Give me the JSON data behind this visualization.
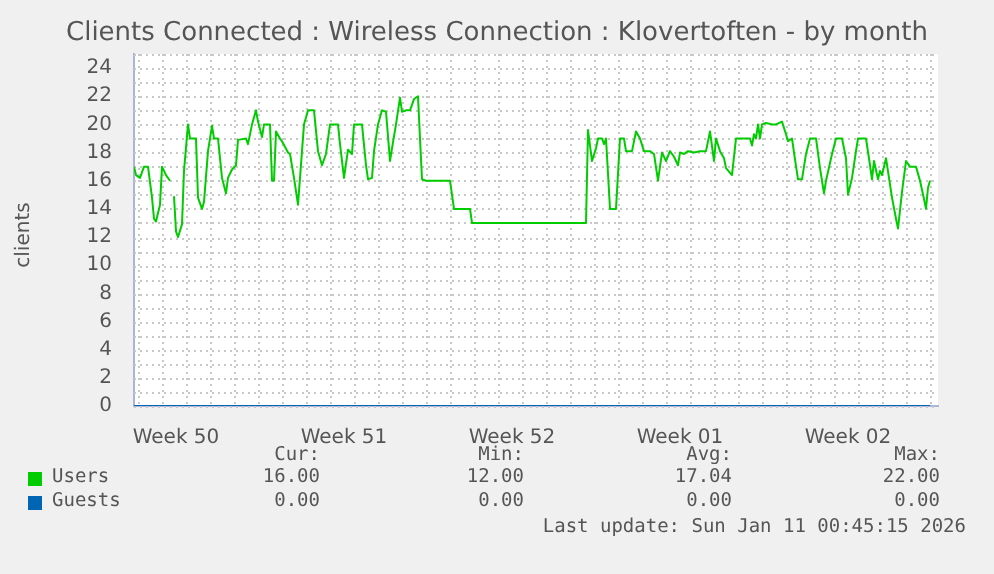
{
  "chart_data": {
    "type": "line",
    "title": "Clients Connected : Wireless Connection : Klovertoften - by month",
    "ylabel": "clients",
    "xlim": [
      "2025-12-08T20:00",
      "2026-01-11T08:00"
    ],
    "xticks": [
      {
        "value": "2025-12-10T14:00",
        "label": "Week 50"
      },
      {
        "value": "2025-12-17T14:00",
        "label": "Week 51"
      },
      {
        "value": "2025-12-24T14:00",
        "label": "Week 52"
      },
      {
        "value": "2025-12-31T14:00",
        "label": "Week 01"
      },
      {
        "value": "2026-01-07T14:00",
        "label": "Week 02"
      }
    ],
    "ylim": [
      0,
      25
    ],
    "yticks": [
      0,
      2,
      4,
      6,
      8,
      10,
      12,
      14,
      16,
      18,
      20,
      22,
      24
    ],
    "grid": true,
    "legend": "bottom left",
    "marker": "none",
    "line_style": "solid",
    "series": [
      {
        "name": "Users",
        "color": "#00cc00",
        "x": [
          "2025-12-08T20:00",
          "2025-12-08T22:00",
          "2025-12-09T02:00",
          "2025-12-09T06:00",
          "2025-12-09T10:00",
          "2025-12-09T14:00",
          "2025-12-09T16:00",
          "2025-12-09T18:00",
          "2025-12-09T22:00",
          "2025-12-10T00:00",
          "2025-12-10T04:00",
          "2025-12-10T08:00",
          "2025-12-10T10:00",
          "2025-12-10T12:00",
          "2025-12-10T14:00",
          "2025-12-10T16:00",
          "2025-12-10T20:00",
          "2025-12-10T22:00",
          "2025-12-11T02:00",
          "2025-12-11T04:00",
          "2025-12-11T10:00",
          "2025-12-11T12:00",
          "2025-12-11T16:00",
          "2025-12-11T18:00",
          "2025-12-11T22:00",
          "2025-12-12T02:00",
          "2025-12-12T04:00",
          "2025-12-12T08:00",
          "2025-12-12T12:00",
          "2025-12-12T16:00",
          "2025-12-12T18:00",
          "2025-12-12T22:00",
          "2025-12-13T02:00",
          "2025-12-13T04:00",
          "2025-12-13T12:00",
          "2025-12-13T14:00",
          "2025-12-13T18:00",
          "2025-12-13T22:00",
          "2025-12-14T00:00",
          "2025-12-14T04:00",
          "2025-12-14T06:00",
          "2025-12-14T12:00",
          "2025-12-14T14:00",
          "2025-12-14T16:00",
          "2025-12-14T18:00",
          "2025-12-14T22:00",
          "2025-12-15T00:00",
          "2025-12-15T06:00",
          "2025-12-15T08:00",
          "2025-12-15T12:00",
          "2025-12-15T16:00",
          "2025-12-15T20:00",
          "2025-12-15T22:00",
          "2025-12-16T02:00",
          "2025-12-16T08:00",
          "2025-12-16T12:00",
          "2025-12-16T16:00",
          "2025-12-16T20:00",
          "2025-12-17T00:00",
          "2025-12-17T08:00",
          "2025-12-17T10:00",
          "2025-12-17T14:00",
          "2025-12-17T18:00",
          "2025-12-17T22:00",
          "2025-12-18T00:00",
          "2025-12-18T08:00",
          "2025-12-18T12:00",
          "2025-12-18T14:00",
          "2025-12-18T18:00",
          "2025-12-18T20:00",
          "2025-12-19T00:00",
          "2025-12-19T04:00",
          "2025-12-19T08:00",
          "2025-12-19T12:00",
          "2025-12-19T14:00",
          "2025-12-19T18:00",
          "2025-12-19T22:00",
          "2025-12-20T00:00",
          "2025-12-20T04:00",
          "2025-12-20T08:00",
          "2025-12-20T12:00",
          "2025-12-20T16:00",
          "2025-12-20T18:00",
          "2025-12-20T20:00",
          "2025-12-21T00:00",
          "2025-12-22T00:00",
          "2025-12-22T04:00",
          "2025-12-22T20:00",
          "2025-12-22T22:00",
          "2025-12-27T16:00",
          "2025-12-27T18:00",
          "2025-12-27T22:00",
          "2025-12-28T02:00",
          "2025-12-28T04:00",
          "2025-12-28T08:00",
          "2025-12-28T10:00",
          "2025-12-28T12:00",
          "2025-12-28T16:00",
          "2025-12-28T22:00",
          "2025-12-29T02:00",
          "2025-12-29T06:00",
          "2025-12-29T08:00",
          "2025-12-29T14:00",
          "2025-12-29T18:00",
          "2025-12-29T22:00",
          "2025-12-30T02:00",
          "2025-12-30T08:00",
          "2025-12-30T12:00",
          "2025-12-30T16:00",
          "2025-12-30T20:00",
          "2025-12-31T00:00",
          "2025-12-31T04:00",
          "2025-12-31T08:00",
          "2025-12-31T12:00",
          "2025-12-31T14:00",
          "2025-12-31T18:00",
          "2025-12-31T22:00",
          "2026-01-01T04:00",
          "2026-01-01T10:00",
          "2026-01-01T16:00",
          "2026-01-01T20:00",
          "2026-01-02T00:00",
          "2026-01-02T02:00",
          "2026-01-02T06:00",
          "2026-01-02T10:00",
          "2026-01-02T12:00",
          "2026-01-02T18:00",
          "2026-01-02T22:00",
          "2026-01-03T02:00",
          "2026-01-03T08:00",
          "2026-01-03T12:00",
          "2026-01-03T14:00",
          "2026-01-03T16:00",
          "2026-01-03T18:00",
          "2026-01-03T20:00",
          "2026-01-03T22:00",
          "2026-01-04T00:00",
          "2026-01-04T04:00",
          "2026-01-04T10:00",
          "2026-01-04T14:00",
          "2026-01-04T20:00",
          "2026-01-05T00:00",
          "2026-01-05T02:00",
          "2026-01-05T06:00",
          "2026-01-05T08:00",
          "2026-01-05T12:00",
          "2026-01-05T16:00",
          "2026-01-05T20:00",
          "2026-01-06T00:00",
          "2026-01-06T06:00",
          "2026-01-06T10:00",
          "2026-01-06T14:00",
          "2026-01-06T16:00",
          "2026-01-06T22:00",
          "2026-01-07T02:00",
          "2026-01-07T08:00",
          "2026-01-07T12:00",
          "2026-01-07T14:00",
          "2026-01-07T18:00",
          "2026-01-07T22:00",
          "2026-01-08T00:00",
          "2026-01-08T08:00",
          "2026-01-08T12:00",
          "2026-01-08T14:00",
          "2026-01-08T16:00",
          "2026-01-08T20:00",
          "2026-01-08T22:00",
          "2026-01-09T00:00",
          "2026-01-09T04:00",
          "2026-01-09T10:00",
          "2026-01-09T14:00",
          "2026-01-09T16:00",
          "2026-01-09T20:00",
          "2026-01-10T00:00",
          "2026-01-10T04:00",
          "2026-01-10T10:00",
          "2026-01-10T14:00",
          "2026-01-10T18:00",
          "2026-01-10T20:00",
          "2026-01-10T22:00",
          "2026-01-11T00:00"
        ],
        "values": [
          17,
          16.4,
          16.2,
          17,
          17,
          14.8,
          13.3,
          13.1,
          14.3,
          17,
          16.4,
          16,
          null,
          14.9,
          12.4,
          12,
          12.9,
          16.7,
          20,
          19,
          19,
          14.8,
          14,
          14.5,
          18.1,
          19.9,
          19,
          19,
          16.2,
          15.1,
          16.2,
          16.8,
          17.1,
          18.9,
          19,
          18.6,
          20,
          21,
          20.2,
          19.1,
          20,
          20,
          16,
          16,
          19.5,
          19,
          18.8,
          18,
          17.9,
          16.2,
          14.3,
          18.1,
          20,
          21,
          21,
          18.1,
          17.1,
          17.9,
          20,
          20,
          18.6,
          16.2,
          18.2,
          17.9,
          20,
          20,
          17.1,
          16.1,
          16.2,
          18.1,
          20,
          21,
          20.9,
          17.4,
          18.3,
          20,
          21.9,
          20.9,
          21,
          21,
          21.8,
          22,
          19,
          16.1,
          16,
          16,
          14,
          14,
          13,
          13,
          19.6,
          17.4,
          18.3,
          19,
          19,
          18.6,
          19,
          14,
          14,
          19,
          19,
          18.1,
          18.1,
          19.5,
          19,
          18.1,
          18.1,
          17.9,
          16,
          18,
          17.4,
          18.1,
          17.7,
          17.1,
          18,
          17.9,
          18.1,
          18,
          18.1,
          18.1,
          19.5,
          17.4,
          19,
          18.1,
          17.6,
          16.9,
          16.4,
          19,
          19,
          19,
          19,
          18.5,
          19.3,
          19,
          20,
          19,
          20,
          20.1,
          20,
          20,
          20.2,
          19.3,
          18.8,
          19,
          18,
          16.1,
          16.1,
          17.9,
          19,
          19,
          16.9,
          15.1,
          16,
          17.9,
          19,
          19,
          17.6,
          15,
          16.2,
          18.1,
          19,
          19,
          17.1,
          16.1,
          17.4,
          16.1,
          16.7,
          16.4,
          17.6,
          14.8,
          13.3,
          12.6,
          15.2,
          17.4,
          17,
          17,
          16,
          14.7,
          14,
          15.5,
          16
        ]
      },
      {
        "name": "Guests",
        "color": "#0066b3",
        "x": [
          "2025-12-08T20:00",
          "2026-01-11T00:00"
        ],
        "values": [
          0,
          0
        ]
      }
    ],
    "annotations": [
      "Cur:",
      "Min:",
      "Avg:",
      "Max:",
      "16.00",
      "12.00",
      "17.04",
      "22.00",
      "0.00",
      "0.00",
      "0.00",
      "0.00",
      "Last update: Sun Jan 11 00:45:15 2026"
    ]
  }
}
